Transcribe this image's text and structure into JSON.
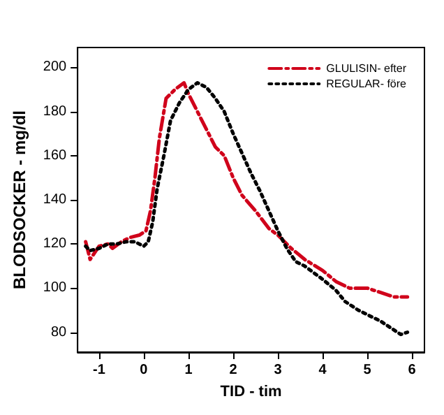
{
  "chart_data": {
    "type": "line",
    "xlabel": "TID - tim",
    "ylabel": "BLODSOCKER - mg/dl",
    "xlim": [
      -1.48,
      6.28
    ],
    "ylim": [
      71,
      209
    ],
    "xticks": [
      -1,
      0,
      1,
      2,
      3,
      4,
      5,
      6
    ],
    "yticks": [
      80,
      100,
      120,
      140,
      160,
      180,
      200
    ],
    "grid": false,
    "legend": "top right",
    "marker": "none",
    "series": [
      {
        "name": "GLULISIN- efter",
        "color": "#d0021b",
        "line_style": "dashed",
        "x": [
          -1.3,
          -1.2,
          -1.1,
          -1,
          -0.8,
          -0.7,
          -0.5,
          -0.3,
          -0.1,
          0.05,
          0.15,
          0.25,
          0.35,
          0.5,
          0.7,
          0.9,
          1.0,
          1.2,
          1.4,
          1.6,
          1.8,
          2.0,
          2.2,
          2.5,
          2.8,
          3.0,
          3.3,
          3.6,
          4.0,
          4.3,
          4.6,
          5.0,
          5.3,
          5.6,
          5.9
        ],
        "values": [
          121,
          113,
          116,
          119,
          120,
          118,
          121,
          123,
          124,
          126,
          135,
          150,
          168,
          186,
          190,
          193,
          188,
          180,
          172,
          164,
          160,
          150,
          142,
          135,
          127,
          124,
          118,
          113,
          108,
          103,
          100,
          100,
          98,
          96,
          96
        ]
      },
      {
        "name": "REGULAR- före",
        "color": "#000000",
        "line_style": "dotted",
        "x": [
          -1.3,
          -1.2,
          -1,
          -0.8,
          -0.6,
          -0.4,
          -0.2,
          0,
          0.1,
          0.2,
          0.3,
          0.45,
          0.6,
          0.8,
          1.0,
          1.2,
          1.4,
          1.6,
          1.8,
          2.0,
          2.2,
          2.4,
          2.6,
          2.8,
          3.0,
          3.2,
          3.4,
          3.6,
          3.8,
          4.0,
          4.3,
          4.5,
          4.8,
          5.0,
          5.3,
          5.6,
          5.75,
          5.9
        ],
        "values": [
          119,
          117,
          118,
          120,
          120,
          121,
          121,
          119,
          121,
          130,
          145,
          160,
          176,
          184,
          190,
          193,
          191,
          186,
          180,
          170,
          161,
          152,
          144,
          135,
          126,
          118,
          112,
          110,
          107,
          104,
          99,
          94,
          90,
          88,
          85,
          81,
          79,
          80
        ]
      }
    ]
  }
}
